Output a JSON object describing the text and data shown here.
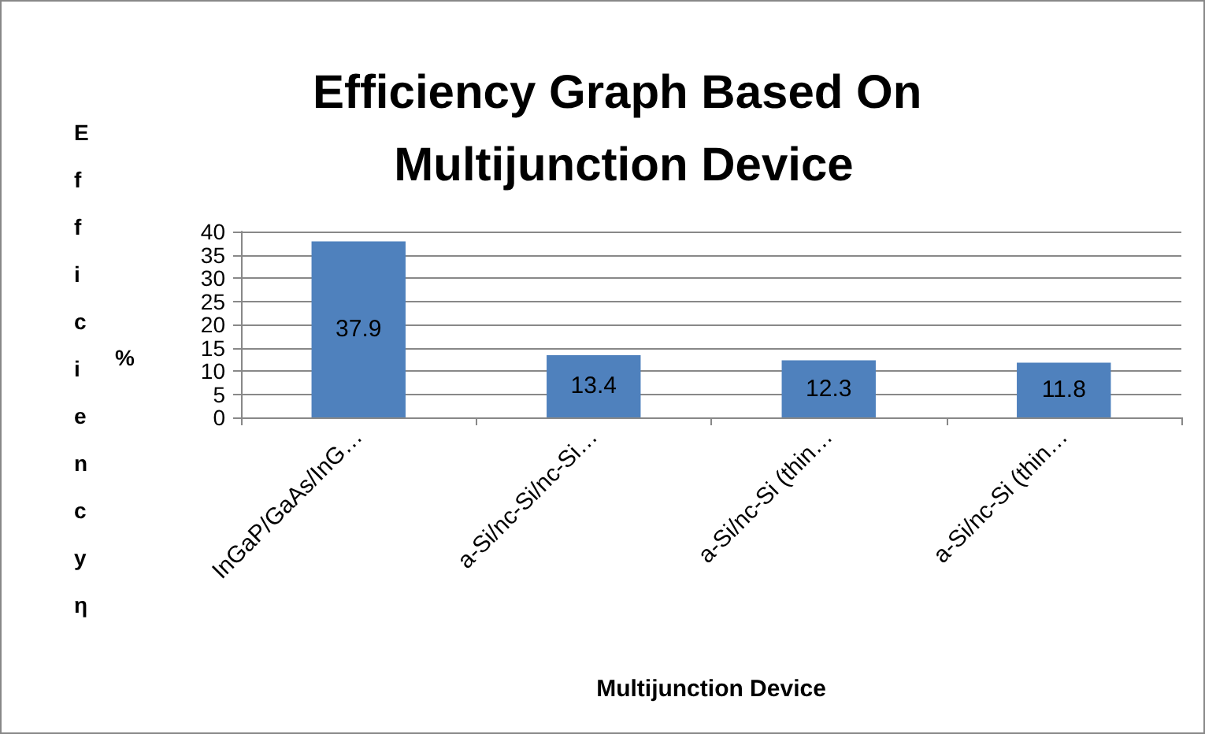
{
  "chart_data": {
    "type": "bar",
    "title": "Efficiency Graph Based On Multijunction Device",
    "xlabel": "Multijunction Device",
    "ylabel": "Efficiency η",
    "annotations": [
      "%"
    ],
    "categories": [
      "InGaP/GaAs/InG…",
      "a-Si/nc-Si/nc-Si…",
      "a-Si/nc-Si (thin…",
      "a-Si/nc-Si (thin…"
    ],
    "values": [
      37.9,
      13.4,
      12.3,
      11.8
    ],
    "color": "#4f81bd",
    "data_labels": true,
    "ylim": [
      0,
      40
    ],
    "yticks": [
      0,
      5,
      10,
      15,
      20,
      25,
      30,
      35,
      40
    ],
    "grid": "y"
  }
}
